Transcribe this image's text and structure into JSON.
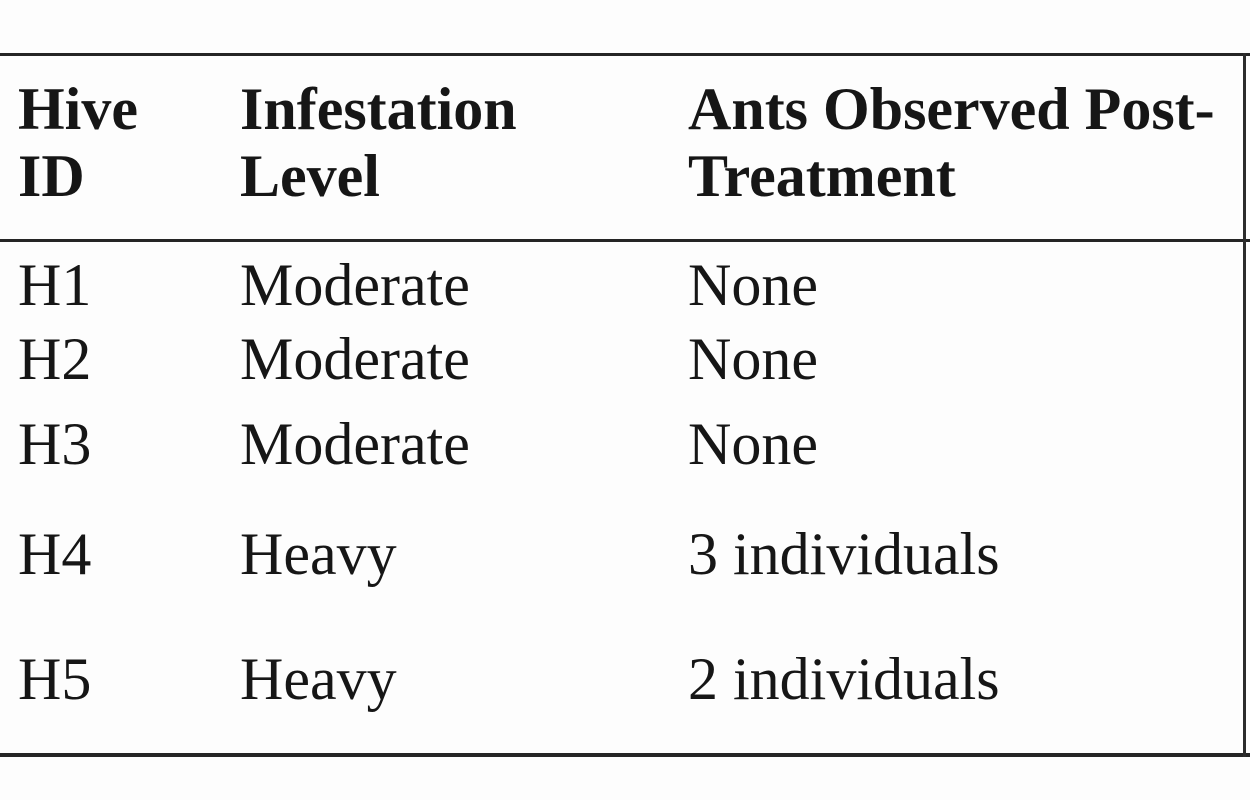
{
  "table": {
    "columns": [
      {
        "label": "Hive ID"
      },
      {
        "label": "Infestation Level"
      },
      {
        "label": "Ants Observed Post-Treatment"
      }
    ],
    "rows": [
      {
        "hive_id": "H1",
        "infestation_level": "Moderate",
        "ants_observed": "None"
      },
      {
        "hive_id": "H2",
        "infestation_level": "Moderate",
        "ants_observed": "None"
      },
      {
        "hive_id": "H3",
        "infestation_level": "Moderate",
        "ants_observed": "None"
      },
      {
        "hive_id": "H4",
        "infestation_level": "Heavy",
        "ants_observed": "3 individuals"
      },
      {
        "hive_id": "H5",
        "infestation_level": "Heavy",
        "ants_observed": "2 individuals"
      }
    ],
    "colors": {
      "rule": "#252525",
      "text": "#161616",
      "background": "#fdfdfd"
    }
  }
}
